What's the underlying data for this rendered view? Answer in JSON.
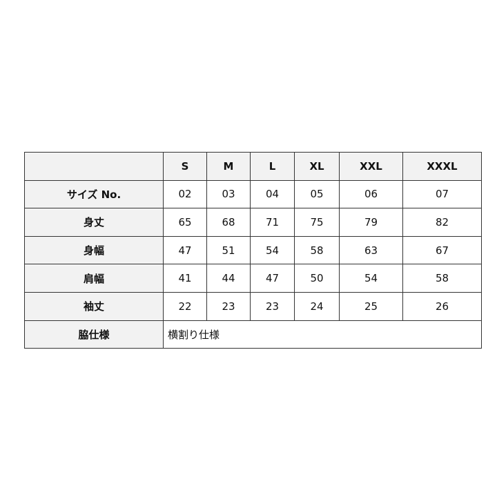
{
  "sizes": [
    "S",
    "M",
    "L",
    "XL",
    "XXL",
    "XXXL"
  ],
  "rows": [
    {
      "label": "サイズ No.",
      "values": [
        "02",
        "03",
        "04",
        "05",
        "06",
        "07"
      ]
    },
    {
      "label": "身丈",
      "values": [
        "65",
        "68",
        "71",
        "75",
        "79",
        "82"
      ]
    },
    {
      "label": "身幅",
      "values": [
        "47",
        "51",
        "54",
        "58",
        "63",
        "67"
      ]
    },
    {
      "label": "肩幅",
      "values": [
        "41",
        "44",
        "47",
        "50",
        "54",
        "58"
      ]
    },
    {
      "label": "袖丈",
      "values": [
        "22",
        "23",
        "23",
        "24",
        "25",
        "26"
      ]
    }
  ],
  "side": {
    "label": "脇仕様",
    "value": "横割り仕様"
  }
}
